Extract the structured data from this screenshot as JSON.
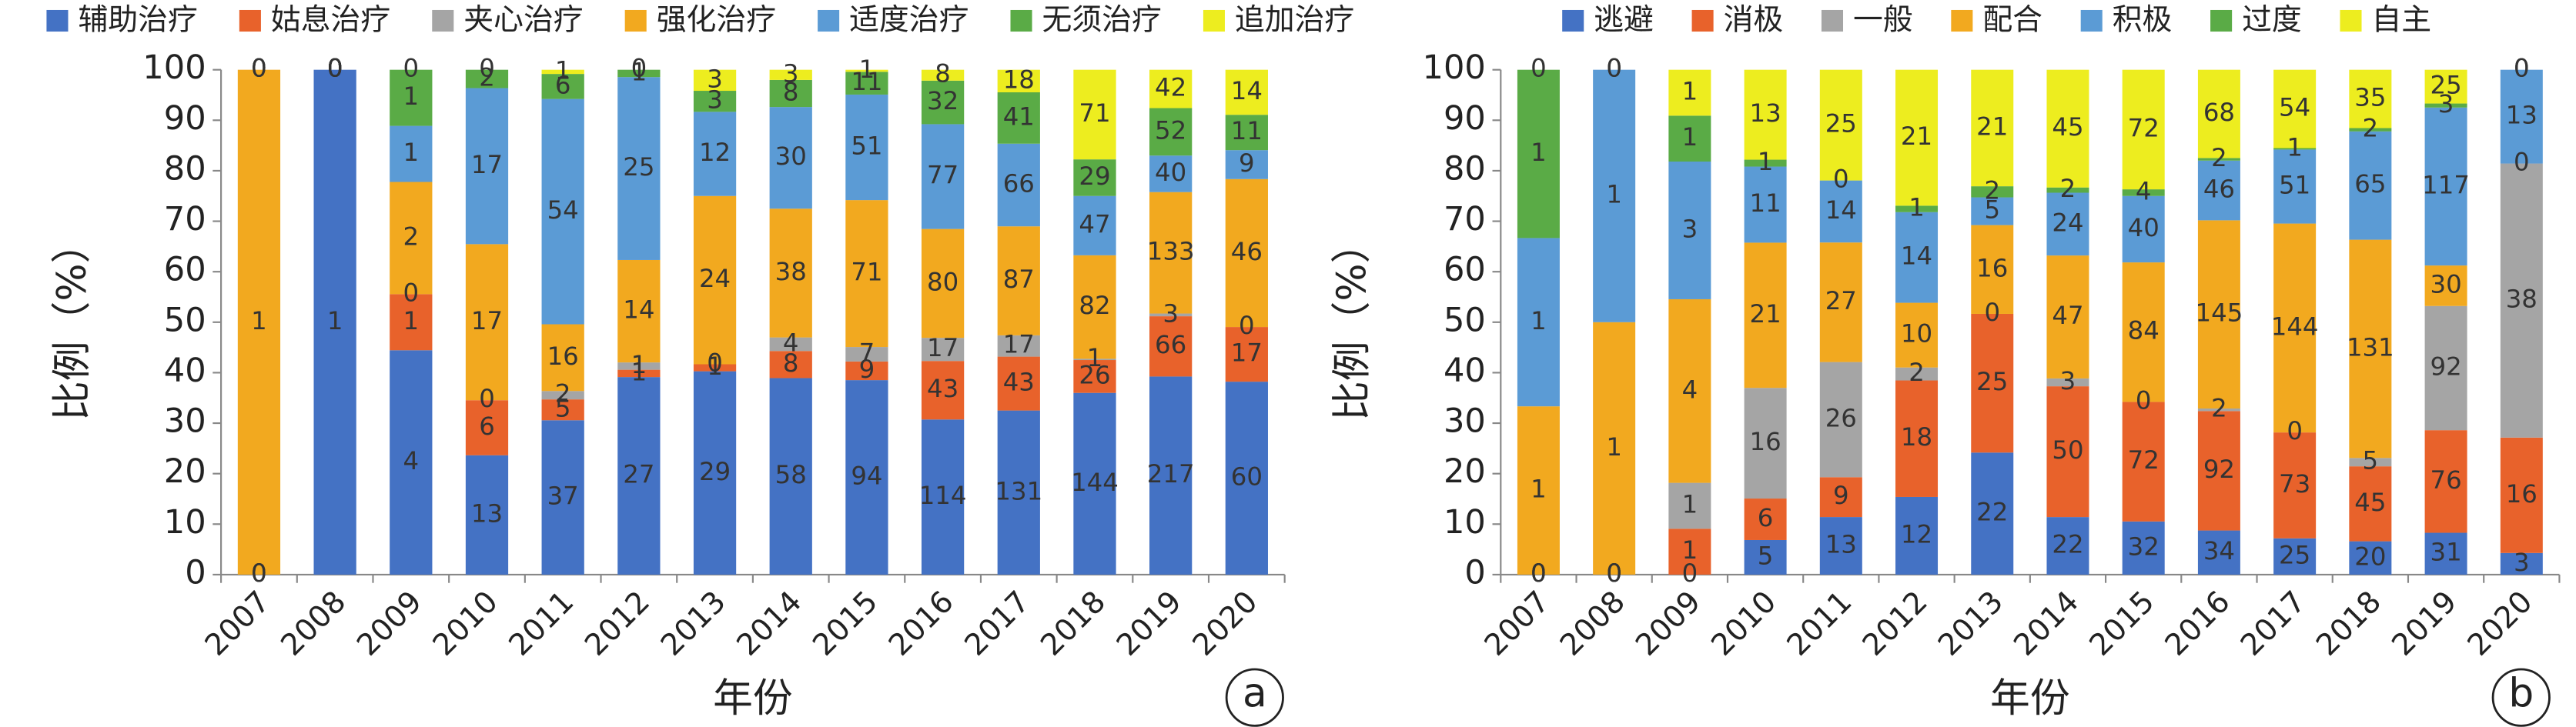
{
  "chart_data": [
    {
      "type": "bar",
      "stacking": "percent",
      "x_label": "年份",
      "y_label": "比例（%）",
      "panel": "a",
      "categories": [
        "2007",
        "2008",
        "2009",
        "2010",
        "2011",
        "2012",
        "2013",
        "2014",
        "2015",
        "2016",
        "2017",
        "2018",
        "2019",
        "2020"
      ],
      "ylim": [
        0,
        100
      ],
      "yticks": [
        0,
        10,
        20,
        30,
        40,
        50,
        60,
        70,
        80,
        90,
        100
      ],
      "series": [
        {
          "name": "辅助治疗",
          "color": "#4472c4",
          "values": [
            0,
            1,
            4,
            13,
            37,
            27,
            29,
            58,
            94,
            114,
            131,
            144,
            217,
            60
          ]
        },
        {
          "name": "姑息治疗",
          "color": "#e8622b",
          "values": [
            0,
            0,
            1,
            6,
            5,
            1,
            1,
            8,
            9,
            43,
            43,
            26,
            66,
            17
          ]
        },
        {
          "name": "夹心治疗",
          "color": "#a5a5a5",
          "values": [
            0,
            0,
            0,
            0,
            2,
            1,
            0,
            4,
            7,
            17,
            17,
            1,
            3,
            0
          ]
        },
        {
          "name": "强化治疗",
          "color": "#f2a91f",
          "values": [
            1,
            0,
            2,
            17,
            16,
            14,
            24,
            38,
            71,
            80,
            87,
            82,
            133,
            46
          ]
        },
        {
          "name": "适度治疗",
          "color": "#5b9bd5",
          "values": [
            0,
            0,
            1,
            17,
            54,
            25,
            12,
            30,
            51,
            77,
            66,
            47,
            40,
            9
          ]
        },
        {
          "name": "无须治疗",
          "color": "#5aab46",
          "values": [
            0,
            0,
            1,
            2,
            6,
            1,
            3,
            8,
            11,
            32,
            41,
            29,
            52,
            11
          ]
        },
        {
          "name": "追加治疗",
          "color": "#eded1f",
          "values": [
            0,
            0,
            0,
            0,
            1,
            0,
            3,
            3,
            1,
            8,
            18,
            71,
            42,
            14
          ]
        }
      ]
    },
    {
      "type": "bar",
      "stacking": "percent",
      "x_label": "年份",
      "y_label": "比例（%）",
      "panel": "b",
      "categories": [
        "2007",
        "2008",
        "2009",
        "2010",
        "2011",
        "2012",
        "2013",
        "2014",
        "2015",
        "2016",
        "2017",
        "2018",
        "2019",
        "2020"
      ],
      "ylim": [
        0,
        100
      ],
      "yticks": [
        0,
        10,
        20,
        30,
        40,
        50,
        60,
        70,
        80,
        90,
        100
      ],
      "series": [
        {
          "name": "逃避",
          "color": "#4472c4",
          "values": [
            0,
            0,
            0,
            5,
            13,
            12,
            22,
            22,
            32,
            34,
            25,
            20,
            31,
            3
          ]
        },
        {
          "name": "消极",
          "color": "#e8622b",
          "values": [
            0,
            0,
            1,
            6,
            9,
            18,
            25,
            50,
            72,
            92,
            73,
            45,
            76,
            16
          ]
        },
        {
          "name": "一般",
          "color": "#a5a5a5",
          "values": [
            0,
            0,
            1,
            16,
            26,
            2,
            0,
            3,
            0,
            2,
            0,
            5,
            92,
            38
          ]
        },
        {
          "name": "配合",
          "color": "#f2a91f",
          "values": [
            1,
            1,
            4,
            21,
            27,
            10,
            16,
            47,
            84,
            145,
            144,
            131,
            30,
            0
          ]
        },
        {
          "name": "积极",
          "color": "#5b9bd5",
          "values": [
            1,
            1,
            3,
            11,
            14,
            14,
            5,
            24,
            40,
            46,
            51,
            65,
            117,
            13
          ]
        },
        {
          "name": "过度",
          "color": "#5aab46",
          "values": [
            1,
            0,
            1,
            1,
            0,
            1,
            2,
            2,
            4,
            2,
            1,
            2,
            3,
            0
          ]
        },
        {
          "name": "自主",
          "color": "#eded1f",
          "values": [
            0,
            0,
            1,
            13,
            25,
            21,
            21,
            45,
            72,
            68,
            54,
            35,
            25,
            0
          ]
        }
      ]
    }
  ]
}
